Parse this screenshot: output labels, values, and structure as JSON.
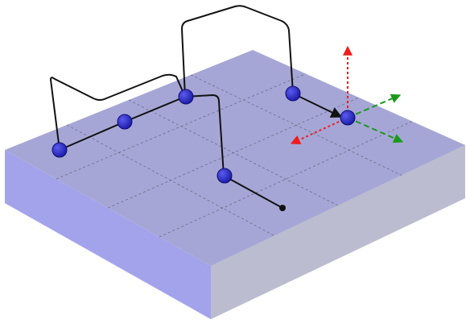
{
  "colors": {
    "slab_top": "#a6a6d6",
    "slab_front": "#a3a3ec",
    "slab_right": "#bcbcd0",
    "grid": "#6a6a88",
    "path": "#111111",
    "node": "#2525c8",
    "node_edge": "#0e0e70",
    "axis_up": "#ee1c1c",
    "axis_back": "#ee1c1c",
    "axis_green": "#1a9a1a"
  },
  "grid": {
    "divisions": 4
  },
  "nodes": [
    {
      "id": "node-1"
    },
    {
      "id": "node-2"
    },
    {
      "id": "node-3"
    },
    {
      "id": "node-4"
    },
    {
      "id": "node-5"
    },
    {
      "id": "node-6"
    }
  ],
  "end_point": {
    "id": "path-end-point"
  },
  "axes": [
    {
      "id": "axis-up-arrow",
      "style": "dotted",
      "color_key": "axis_up"
    },
    {
      "id": "axis-back-arrow",
      "style": "dotted",
      "color_key": "axis_back"
    },
    {
      "id": "axis-green-arrow-1",
      "style": "dashed",
      "color_key": "axis_green"
    },
    {
      "id": "axis-green-arrow-2",
      "style": "dashed",
      "color_key": "axis_green"
    }
  ]
}
